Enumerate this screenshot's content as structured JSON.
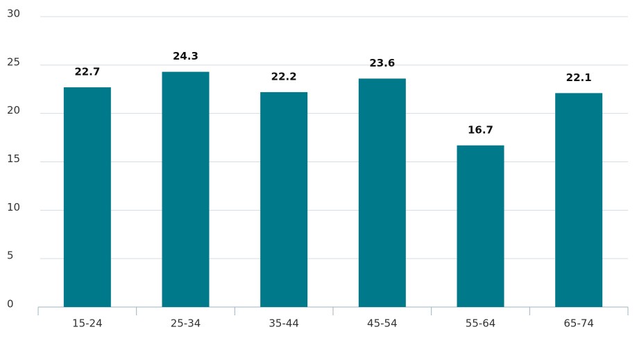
{
  "chart_data": {
    "type": "bar",
    "categories": [
      "15-24",
      "25-34",
      "35-44",
      "45-54",
      "55-64",
      "65-74"
    ],
    "values": [
      22.7,
      24.3,
      22.2,
      23.6,
      16.7,
      22.1
    ],
    "color": "#007a8a",
    "ylim": [
      0,
      30
    ],
    "yticks": [
      0,
      5,
      10,
      15,
      20,
      25,
      30
    ],
    "grid": true
  }
}
